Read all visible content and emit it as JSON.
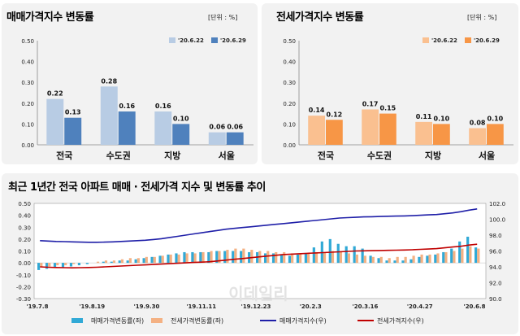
{
  "panels": {
    "sale": {
      "title": "매매가격지수 변동률",
      "unit": "[단위 : %]"
    },
    "jeonse": {
      "title": "전세가격지수 변동률",
      "unit": "[단위 : %]"
    },
    "trend": {
      "title": "최근 1년간 전국 아파트 매매 · 전세가격 지수 및 변동률 추이"
    }
  },
  "chart_data": [
    {
      "type": "bar",
      "title": "매매가격지수 변동률",
      "categories": [
        "전국",
        "수도권",
        "지방",
        "서울"
      ],
      "series": [
        {
          "name": "'20.6.22",
          "values": [
            0.22,
            0.28,
            0.16,
            0.06
          ],
          "color": "#b8cce4"
        },
        {
          "name": "'20.6.29",
          "values": [
            0.13,
            0.16,
            0.1,
            0.06
          ],
          "color": "#4f81bd"
        }
      ],
      "ylim": [
        0,
        0.5
      ],
      "yticks": [
        "0.00",
        "0.10",
        "0.20",
        "0.30",
        "0.40",
        "0.50"
      ]
    },
    {
      "type": "bar",
      "title": "전세가격지수 변동률",
      "categories": [
        "전국",
        "수도권",
        "지방",
        "서울"
      ],
      "series": [
        {
          "name": "'20.6.22",
          "values": [
            0.14,
            0.17,
            0.11,
            0.08
          ],
          "color": "#fac090"
        },
        {
          "name": "'20.6.29",
          "values": [
            0.12,
            0.15,
            0.1,
            0.1
          ],
          "color": "#f79646"
        }
      ],
      "ylim": [
        0,
        0.5
      ],
      "yticks": [
        "0.00",
        "0.10",
        "0.20",
        "0.30",
        "0.40",
        "0.50"
      ]
    },
    {
      "type": "bar+line",
      "title": "최근 1년간 전국 아파트 매매 · 전세가격 지수 및 변동률 추이",
      "x_labels": [
        "'19.7.8",
        "'19.8.19",
        "'19.9.30",
        "'19.11.11",
        "'19.12.23",
        "'20.2.3",
        "'20.3.16",
        "'20.4.27",
        "'20.6.8"
      ],
      "ylim_left": [
        -0.3,
        0.5
      ],
      "yticks_left": [
        "0.50",
        "0.40",
        "0.30",
        "0.20",
        "0.10",
        "0.00",
        "-0.10",
        "-0.20",
        "-0.30"
      ],
      "ylim_right": [
        90,
        102
      ],
      "yticks_right": [
        "102.0",
        "100.0",
        "98.0",
        "96.0",
        "94.0",
        "92.0",
        "90.0"
      ],
      "series": [
        {
          "name": "매매가격변동률(좌)",
          "kind": "bar",
          "color": "#31a9d6",
          "values": [
            -0.06,
            -0.05,
            -0.04,
            -0.04,
            -0.03,
            -0.02,
            -0.01,
            0.0,
            0.01,
            0.01,
            0.02,
            0.02,
            0.03,
            0.04,
            0.05,
            0.06,
            0.07,
            0.08,
            0.09,
            0.09,
            0.09,
            0.09,
            0.1,
            0.1,
            0.1,
            0.1,
            0.09,
            0.09,
            0.08,
            0.08,
            0.07,
            0.06,
            0.07,
            0.08,
            0.13,
            0.18,
            0.2,
            0.16,
            0.14,
            0.14,
            0.12,
            0.06,
            0.04,
            0.02,
            0.02,
            0.02,
            0.03,
            0.05,
            0.06,
            0.07,
            0.09,
            0.12,
            0.18,
            0.22,
            0.13
          ]
        },
        {
          "name": "전세가격변동률(좌)",
          "kind": "bar",
          "color": "#f4b183",
          "values": [
            -0.03,
            -0.03,
            -0.02,
            -0.02,
            -0.01,
            0.0,
            0.0,
            0.01,
            0.02,
            0.02,
            0.03,
            0.04,
            0.04,
            0.05,
            0.05,
            0.06,
            0.07,
            0.07,
            0.08,
            0.08,
            0.09,
            0.1,
            0.1,
            0.11,
            0.12,
            0.12,
            0.11,
            0.1,
            0.1,
            0.09,
            0.09,
            0.08,
            0.08,
            0.08,
            0.09,
            0.09,
            0.1,
            0.09,
            0.08,
            0.07,
            0.06,
            0.05,
            0.05,
            0.04,
            0.05,
            0.05,
            0.06,
            0.07,
            0.07,
            0.08,
            0.09,
            0.1,
            0.12,
            0.14,
            0.12
          ]
        },
        {
          "name": "매매가격지수(우)",
          "kind": "line",
          "color": "#1f1fa8",
          "values": [
            97.3,
            97.25,
            97.2,
            97.18,
            97.15,
            97.12,
            97.1,
            97.1,
            97.12,
            97.15,
            97.2,
            97.25,
            97.3,
            97.35,
            97.45,
            97.55,
            97.7,
            97.85,
            98.0,
            98.15,
            98.3,
            98.45,
            98.6,
            98.75,
            98.85,
            98.95,
            99.05,
            99.15,
            99.25,
            99.35,
            99.45,
            99.55,
            99.65,
            99.75,
            99.85,
            99.95,
            100.05,
            100.15,
            100.2,
            100.25,
            100.3,
            100.32,
            100.35,
            100.38,
            100.4,
            100.42,
            100.45,
            100.5,
            100.55,
            100.6,
            100.7,
            100.8,
            100.95,
            101.15,
            101.3
          ]
        },
        {
          "name": "전세가격지수(우)",
          "kind": "line",
          "color": "#c00000",
          "values": [
            94.0,
            93.95,
            93.92,
            93.9,
            93.88,
            93.9,
            93.92,
            93.95,
            94.0,
            94.05,
            94.1,
            94.15,
            94.2,
            94.25,
            94.3,
            94.35,
            94.4,
            94.45,
            94.5,
            94.55,
            94.6,
            94.65,
            94.75,
            94.85,
            94.95,
            95.05,
            95.15,
            95.25,
            95.35,
            95.45,
            95.55,
            95.6,
            95.65,
            95.7,
            95.75,
            95.8,
            95.85,
            95.9,
            95.95,
            96.0,
            96.02,
            96.04,
            96.06,
            96.08,
            96.1,
            96.12,
            96.15,
            96.2,
            96.25,
            96.3,
            96.4,
            96.5,
            96.6,
            96.75,
            96.85
          ]
        }
      ],
      "watermark": "이데일리"
    }
  ]
}
